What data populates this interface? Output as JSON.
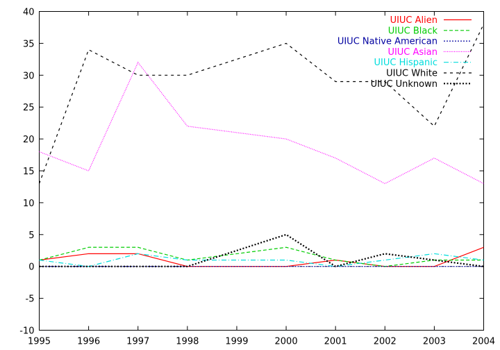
{
  "chart_data": {
    "type": "line",
    "title": "",
    "xlabel": "",
    "ylabel": "",
    "x": [
      1995,
      1996,
      1997,
      1998,
      1999,
      2000,
      2001,
      2002,
      2003,
      2004
    ],
    "xlim": [
      1995,
      2004
    ],
    "ylim": [
      -10,
      40
    ],
    "xticks": [
      "1995",
      "1996",
      "1997",
      "1998",
      "1999",
      "2000",
      "2001",
      "2002",
      "2003",
      "2004"
    ],
    "yticks": [
      "-10",
      "-5",
      "0",
      "5",
      "10",
      "15",
      "20",
      "25",
      "30",
      "35",
      "40"
    ],
    "grid": false,
    "legend_position": "top-right",
    "series": [
      {
        "name": "UIUC Alien",
        "color": "#ff0000",
        "dash": "solid",
        "values": [
          1,
          2,
          2,
          0,
          0,
          0,
          1,
          0,
          0,
          3
        ]
      },
      {
        "name": "UIUC Black",
        "color": "#00cc00",
        "dash": "dashed",
        "values": [
          1,
          3,
          3,
          1,
          2,
          3,
          1,
          0,
          1,
          1
        ]
      },
      {
        "name": "UIUC Native American",
        "color": "#0000a0",
        "dash": "dotted",
        "values": [
          0,
          0,
          0,
          0,
          0,
          0,
          0,
          0,
          0,
          0
        ]
      },
      {
        "name": "UIUC Asian",
        "color": "#ff00ff",
        "dash": "dotted-fine",
        "values": [
          18,
          15,
          32,
          22,
          21,
          20,
          17,
          13,
          17,
          13
        ]
      },
      {
        "name": "UIUC Hispanic",
        "color": "#00dddd",
        "dash": "dashdot",
        "values": [
          1,
          0,
          2,
          1,
          1,
          1,
          0,
          1,
          2,
          1
        ]
      },
      {
        "name": "UIUC White",
        "color": "#000000",
        "dash": "sparse-dashed",
        "values": [
          13,
          34,
          30,
          30,
          32.5,
          35,
          29,
          29,
          22,
          38
        ]
      },
      {
        "name": "UIUC Unknown",
        "color": "#000000",
        "dash": "dotted-bold",
        "values": [
          0,
          0,
          0,
          0,
          2.5,
          5,
          0,
          2,
          1,
          0
        ]
      }
    ]
  }
}
